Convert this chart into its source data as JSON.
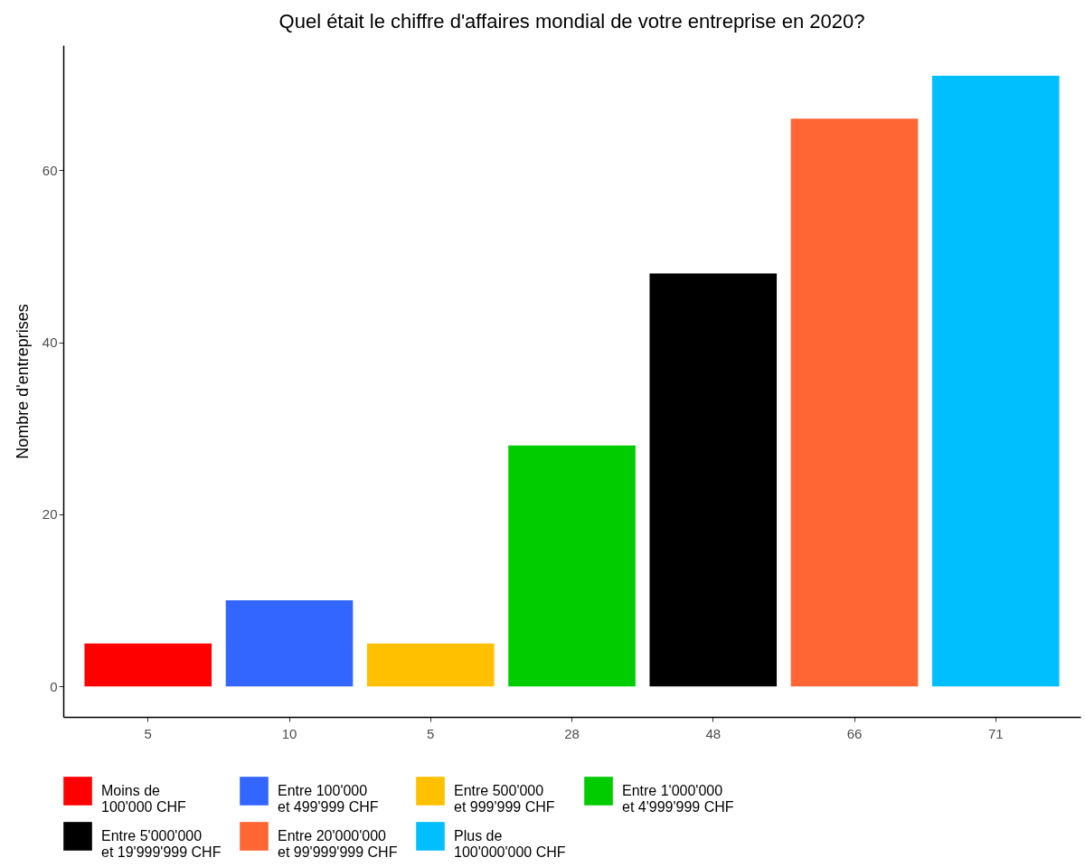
{
  "chart_data": {
    "type": "bar",
    "title": "Quel était le chiffre d'affaires mondial de votre entreprise en 2020?",
    "ylabel": "Nombre d'entreprises",
    "categories": [
      "5",
      "10",
      "5",
      "28",
      "48",
      "66",
      "71"
    ],
    "series": [
      {
        "name": "Moins de\n100'000 CHF",
        "color": "#ff0000",
        "values": [
          5,
          null,
          null,
          null,
          null,
          null,
          null
        ]
      },
      {
        "name": "Entre 100'000\net 499'999 CHF",
        "color": "#3366ff",
        "values": [
          null,
          10,
          null,
          null,
          null,
          null,
          null
        ]
      },
      {
        "name": "Entre 500'000\net 999'999 CHF",
        "color": "#ffc000",
        "values": [
          null,
          null,
          5,
          null,
          null,
          null,
          null
        ]
      },
      {
        "name": "Entre 1'000'000\net 4'999'999 CHF",
        "color": "#00cc00",
        "values": [
          null,
          null,
          null,
          28,
          null,
          null,
          null
        ]
      },
      {
        "name": "Entre 5'000'000\net 19'999'999 CHF",
        "color": "#000000",
        "values": [
          null,
          null,
          null,
          null,
          48,
          null,
          null
        ]
      },
      {
        "name": "Entre 20'000'000\net 99'999'999 CHF",
        "color": "#ff6633",
        "values": [
          null,
          null,
          null,
          null,
          null,
          66,
          null
        ]
      },
      {
        "name": "Plus de\n100'000'000 CHF",
        "color": "#00bfff",
        "values": [
          null,
          null,
          null,
          null,
          null,
          null,
          71
        ]
      }
    ],
    "ylim": [
      -3.55,
      74.55
    ],
    "yticks": [
      0,
      20,
      40,
      60
    ],
    "grid": false,
    "legend": "bottom"
  }
}
